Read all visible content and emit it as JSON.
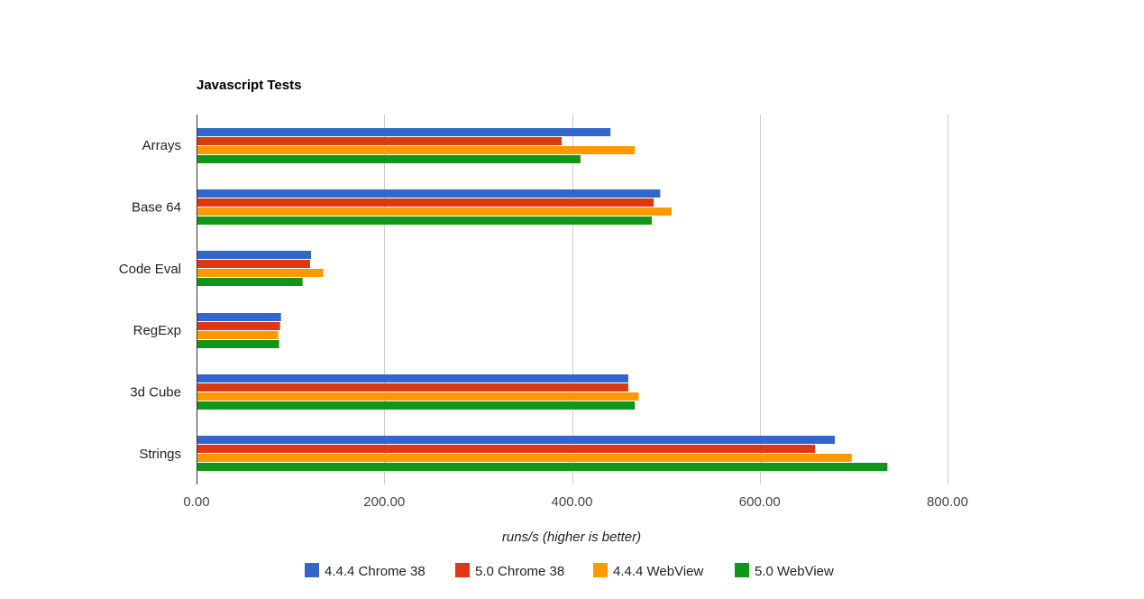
{
  "chart_data": {
    "type": "bar",
    "orientation": "horizontal",
    "title": "Javascript Tests",
    "xlabel": "runs/s (higher is better)",
    "ylabel": "",
    "xlim": [
      0,
      800
    ],
    "xticks": [
      0,
      200,
      400,
      600,
      800
    ],
    "xtick_labels": [
      "0.00",
      "200.00",
      "400.00",
      "600.00",
      "800.00"
    ],
    "grid": true,
    "legend_position": "bottom",
    "categories": [
      "Arrays",
      "Base 64",
      "Code Eval",
      "RegExp",
      "3d Cube",
      "Strings"
    ],
    "series": [
      {
        "name": "4.4.4 Chrome 38",
        "color": "#3366cc",
        "values": [
          441,
          494,
          122,
          90,
          460,
          680
        ]
      },
      {
        "name": "5.0 Chrome 38",
        "color": "#dc3912",
        "values": [
          389,
          487,
          121,
          89,
          460,
          659
        ]
      },
      {
        "name": "4.4.4 WebView",
        "color": "#ff9900",
        "values": [
          467,
          506,
          135,
          87,
          471,
          698
        ]
      },
      {
        "name": "5.0 WebView",
        "color": "#109618",
        "values": [
          409,
          485,
          113,
          88,
          467,
          736
        ]
      }
    ]
  }
}
